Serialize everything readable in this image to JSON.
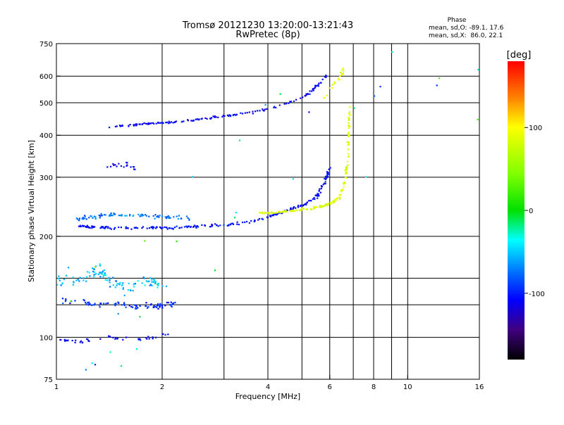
{
  "chart_data": {
    "type": "scatter",
    "title": "Tromsø 20121230 13:20:00-13:21:43",
    "subtitle": "RwPretec (8p)",
    "xlabel": "Frequency [MHz]",
    "ylabel": "Stationary phase Virtual Height [km]",
    "x_scale": "log",
    "y_scale": "log",
    "xlim": [
      1,
      16
    ],
    "ylim": [
      75,
      750
    ],
    "x_ticks": [
      1,
      2,
      4,
      6,
      8,
      10,
      16
    ],
    "x_ticks_minor": [
      3,
      5,
      7,
      9
    ],
    "y_ticks": [
      75,
      100,
      200,
      300,
      400,
      500,
      600,
      750
    ],
    "y_ticks_minor": [
      125,
      150
    ],
    "grid": true,
    "phase_info": {
      "title": "Phase",
      "line_o": "mean, sd,O: -89.1, 17.6",
      "line_x": "mean, sd,X:  86.0, 22.1"
    },
    "colorbar": {
      "label": "[deg]",
      "min": -180,
      "max": 180,
      "ticks": [
        100,
        0,
        -100
      ]
    },
    "series": [
      {
        "kind": "band",
        "x": [
          1.0,
          1.1,
          1.25,
          1.35,
          1.5,
          1.65,
          1.8,
          1.95,
          2.1,
          2.15
        ],
        "y": [
          130,
          128,
          126,
          126,
          125,
          124,
          124,
          124,
          125,
          125
        ],
        "jx": 0.03,
        "jy": 0.03,
        "count": 90,
        "phase": -95,
        "jp": 25
      },
      {
        "kind": "band",
        "x": [
          1.0,
          1.1,
          1.2,
          1.3,
          1.4,
          1.5,
          1.6,
          1.8,
          2.0
        ],
        "y": [
          150,
          145,
          150,
          160,
          150,
          145,
          140,
          150,
          140
        ],
        "jx": 0.04,
        "jy": 0.06,
        "count": 110,
        "phase": -55,
        "jp": 35
      },
      {
        "kind": "band",
        "x": [
          1.0,
          1.1,
          1.25,
          1.4,
          1.5,
          1.7,
          1.9,
          2.1
        ],
        "y": [
          98,
          97,
          98,
          100,
          99,
          99,
          100,
          102
        ],
        "jx": 0.03,
        "jy": 0.02,
        "count": 45,
        "phase": -110,
        "jp": 20
      },
      {
        "kind": "band",
        "x": [
          1.15,
          1.3,
          1.5,
          1.8,
          2.1,
          2.5,
          3.0,
          3.5,
          4.0,
          4.4,
          4.8,
          5.2,
          5.5,
          5.8,
          6.0
        ],
        "y": [
          215,
          213,
          212,
          212,
          212,
          214,
          216,
          220,
          228,
          236,
          244,
          252,
          262,
          290,
          320
        ],
        "jx": 0.015,
        "jy": 0.015,
        "count": 240,
        "phase": -105,
        "jp": 20
      },
      {
        "kind": "band",
        "x": [
          1.15,
          1.3,
          1.5,
          1.8,
          2.1,
          2.4
        ],
        "y": [
          225,
          230,
          232,
          230,
          228,
          226
        ],
        "jx": 0.03,
        "jy": 0.02,
        "count": 90,
        "phase": -75,
        "jp": 30
      },
      {
        "kind": "band",
        "x": [
          3.8,
          4.2,
          4.6,
          5.0,
          5.4,
          5.8,
          6.1,
          6.4,
          6.6,
          6.75,
          6.8,
          6.85
        ],
        "y": [
          235,
          236,
          238,
          240,
          243,
          247,
          252,
          262,
          290,
          340,
          420,
          500
        ],
        "jx": 0.012,
        "jy": 0.012,
        "count": 170,
        "phase": 85,
        "jp": 20
      },
      {
        "kind": "band",
        "x": [
          1.4,
          1.6,
          1.8,
          2.1,
          2.4,
          2.8,
          3.2,
          3.7,
          4.2,
          4.7,
          5.2,
          5.6,
          5.9
        ],
        "y": [
          425,
          428,
          433,
          438,
          443,
          452,
          460,
          470,
          485,
          505,
          530,
          570,
          610
        ],
        "jx": 0.015,
        "jy": 0.01,
        "count": 150,
        "phase": -110,
        "jp": 22
      },
      {
        "kind": "band",
        "x": [
          5.8,
          6.1,
          6.4,
          6.6
        ],
        "y": [
          520,
          560,
          600,
          640
        ],
        "jx": 0.02,
        "jy": 0.02,
        "count": 20,
        "phase": 90,
        "jp": 30
      },
      {
        "kind": "band",
        "x": [
          1.4,
          1.55,
          1.7
        ],
        "y": [
          320,
          330,
          315
        ],
        "jx": 0.03,
        "jy": 0.03,
        "count": 18,
        "phase": -110,
        "jp": 20
      },
      {
        "kind": "band",
        "x": [
          1.0,
          2.0,
          4.0,
          8.0,
          12.0,
          16.0
        ],
        "y": [
          80,
          160,
          320,
          500,
          700,
          600
        ],
        "jx": 0.8,
        "jy": 0.7,
        "count": 45,
        "phase": -40,
        "jp": 140
      }
    ]
  }
}
